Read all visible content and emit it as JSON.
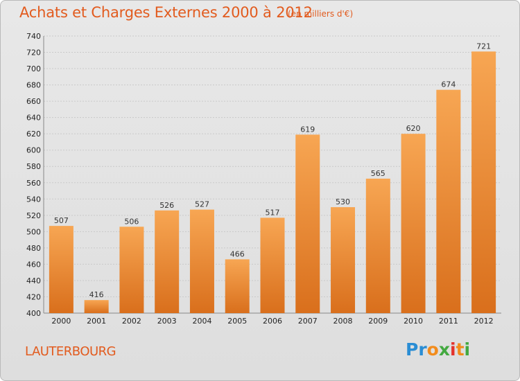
{
  "title": "Achats et Charges Externes 2000 à 2012",
  "subtitle": "(en milliers d'€)",
  "location": "LAUTERBOURG",
  "logo": {
    "text": "Proxiti",
    "letters": [
      "P",
      "r",
      "o",
      "x",
      "i",
      "t",
      "i"
    ],
    "colors": [
      "#2a8dd4",
      "#2a8dd4",
      "#f28c1c",
      "#43a940",
      "#e4322b",
      "#f28c1c",
      "#43a940"
    ]
  },
  "colors": {
    "bar_light": "#f7a653",
    "bar_dark": "#d96f1c",
    "accent": "#e25b1e"
  },
  "chart_data": {
    "type": "bar",
    "title": "Achats et Charges Externes 2000 à 2012",
    "subtitle": "(en milliers d'€)",
    "categories": [
      "2000",
      "2001",
      "2002",
      "2003",
      "2004",
      "2005",
      "2006",
      "2007",
      "2008",
      "2009",
      "2010",
      "2011",
      "2012"
    ],
    "values": [
      507,
      416,
      506,
      526,
      527,
      466,
      517,
      619,
      530,
      565,
      620,
      674,
      721
    ],
    "ylim": [
      400,
      740
    ],
    "yticks": [
      400,
      420,
      440,
      460,
      480,
      500,
      520,
      540,
      560,
      580,
      600,
      620,
      640,
      660,
      680,
      700,
      720,
      740
    ],
    "grid": true,
    "xlabel": "",
    "ylabel": ""
  }
}
